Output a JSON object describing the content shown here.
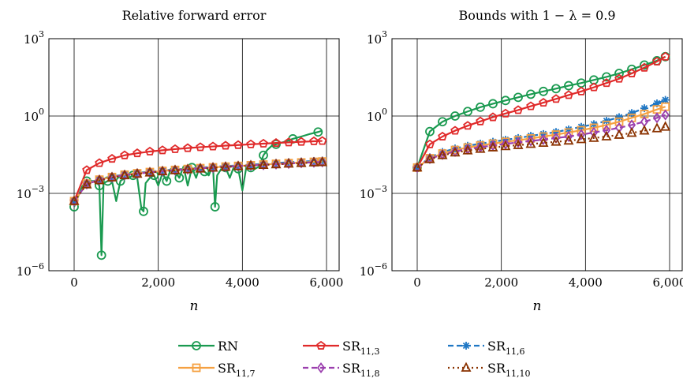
{
  "chart_data": [
    {
      "type": "line",
      "title": "Relative forward error",
      "xlabel": "n",
      "ylabel": "",
      "xlim": [
        -600,
        6300
      ],
      "ylim": [
        1e-06,
        1000
      ],
      "yscale": "log",
      "xticks": [
        0,
        2000,
        4000,
        6000
      ],
      "xtick_labels": [
        "0",
        "2,000",
        "4,000",
        "6,000"
      ],
      "yticks": [
        1e-06,
        0.001,
        1,
        1000
      ],
      "ytick_labels": [
        {
          "base": "10",
          "exp": "−6"
        },
        {
          "base": "10",
          "exp": "−3"
        },
        {
          "base": "10",
          "exp": "0"
        },
        {
          "base": "10",
          "exp": "3"
        }
      ],
      "grid": true,
      "series": [
        {
          "name": "RN",
          "x": [
            0,
            100,
            200,
            300,
            400,
            500,
            600,
            650,
            700,
            800,
            900,
            1000,
            1100,
            1200,
            1300,
            1400,
            1500,
            1600,
            1650,
            1700,
            1800,
            1900,
            2000,
            2100,
            2200,
            2300,
            2400,
            2500,
            2600,
            2700,
            2800,
            2900,
            3000,
            3100,
            3200,
            3300,
            3350,
            3400,
            3500,
            3600,
            3700,
            3800,
            3900,
            4000,
            4100,
            4200,
            4300,
            4400,
            4500,
            4600,
            4700,
            4800,
            4900,
            5000,
            5200,
            5400,
            5600,
            5800,
            5900
          ],
          "y": [
            0.0003,
            0.0008,
            0.002,
            0.003,
            0.003,
            0.003,
            0.002,
            4e-06,
            0.0025,
            0.003,
            0.003,
            0.0005,
            0.003,
            0.004,
            0.004,
            0.005,
            0.004,
            0.00025,
            0.0002,
            0.0025,
            0.004,
            0.005,
            0.002,
            0.006,
            0.003,
            0.009,
            0.007,
            0.004,
            0.011,
            0.002,
            0.01,
            0.004,
            0.013,
            0.007,
            0.005,
            0.012,
            0.0003,
            0.005,
            0.009,
            0.01,
            0.004,
            0.011,
            0.009,
            0.0013,
            0.012,
            0.01,
            0.009,
            0.011,
            0.03,
            0.05,
            0.07,
            0.08,
            0.09,
            0.1,
            0.13,
            0.16,
            0.2,
            0.24,
            0.27
          ]
        },
        {
          "name": "SR11,3",
          "x": [
            0,
            300,
            600,
            900,
            1200,
            1500,
            1800,
            2100,
            2400,
            2700,
            3000,
            3300,
            3600,
            3900,
            4200,
            4500,
            4800,
            5100,
            5400,
            5700,
            5900
          ],
          "y": [
            0.0005,
            0.008,
            0.015,
            0.022,
            0.03,
            0.036,
            0.042,
            0.047,
            0.052,
            0.057,
            0.062,
            0.066,
            0.071,
            0.075,
            0.08,
            0.085,
            0.09,
            0.095,
            0.1,
            0.105,
            0.108
          ]
        },
        {
          "name": "SR11,6",
          "x": [
            0,
            300,
            600,
            900,
            1200,
            1500,
            1800,
            2100,
            2400,
            2700,
            3000,
            3300,
            3600,
            3900,
            4200,
            4500,
            4800,
            5100,
            5400,
            5700,
            5900
          ],
          "y": [
            0.0005,
            0.0025,
            0.0035,
            0.0045,
            0.0055,
            0.0062,
            0.007,
            0.0077,
            0.0085,
            0.0092,
            0.01,
            0.0107,
            0.0115,
            0.0122,
            0.013,
            0.014,
            0.015,
            0.016,
            0.017,
            0.018,
            0.0186
          ]
        },
        {
          "name": "SR11,7",
          "x": [
            0,
            300,
            600,
            900,
            1200,
            1500,
            1800,
            2100,
            2400,
            2700,
            3000,
            3300,
            3600,
            3900,
            4200,
            4500,
            4800,
            5100,
            5400,
            5700,
            5900
          ],
          "y": [
            0.0005,
            0.0024,
            0.0034,
            0.0043,
            0.0053,
            0.006,
            0.0067,
            0.0074,
            0.0081,
            0.0088,
            0.0095,
            0.0102,
            0.0109,
            0.0116,
            0.0123,
            0.0131,
            0.014,
            0.0149,
            0.0158,
            0.0167,
            0.0172
          ]
        },
        {
          "name": "SR11,8",
          "x": [
            0,
            300,
            600,
            900,
            1200,
            1500,
            1800,
            2100,
            2400,
            2700,
            3000,
            3300,
            3600,
            3900,
            4200,
            4500,
            4800,
            5100,
            5400,
            5700,
            5900
          ],
          "y": [
            0.0005,
            0.0023,
            0.0033,
            0.0042,
            0.0051,
            0.0058,
            0.0065,
            0.0072,
            0.0079,
            0.0086,
            0.0093,
            0.01,
            0.0107,
            0.0114,
            0.0121,
            0.0128,
            0.0136,
            0.0144,
            0.0152,
            0.016,
            0.0165
          ]
        },
        {
          "name": "SR11,10",
          "x": [
            0,
            300,
            600,
            900,
            1200,
            1500,
            1800,
            2100,
            2400,
            2700,
            3000,
            3300,
            3600,
            3900,
            4200,
            4500,
            4800,
            5100,
            5400,
            5700,
            5900
          ],
          "y": [
            0.0005,
            0.0022,
            0.0032,
            0.0041,
            0.005,
            0.0057,
            0.0064,
            0.0071,
            0.0078,
            0.0085,
            0.0091,
            0.0098,
            0.0105,
            0.0112,
            0.0119,
            0.0126,
            0.0133,
            0.0141,
            0.0149,
            0.0156,
            0.0161
          ]
        }
      ]
    },
    {
      "type": "line",
      "title": "Bounds with 1 − λ = 0.9",
      "xlabel": "n",
      "ylabel": "",
      "xlim": [
        -600,
        6300
      ],
      "ylim": [
        1e-06,
        1000
      ],
      "yscale": "log",
      "xticks": [
        0,
        2000,
        4000,
        6000
      ],
      "xtick_labels": [
        "0",
        "2,000",
        "4,000",
        "6,000"
      ],
      "yticks": [
        1e-06,
        0.001,
        1,
        1000
      ],
      "ytick_labels": [
        {
          "base": "10",
          "exp": "−6"
        },
        {
          "base": "10",
          "exp": "−3"
        },
        {
          "base": "10",
          "exp": "0"
        },
        {
          "base": "10",
          "exp": "3"
        }
      ],
      "grid": true,
      "series": [
        {
          "name": "RN",
          "x": [
            0,
            300,
            600,
            900,
            1200,
            1500,
            1800,
            2100,
            2400,
            2700,
            3000,
            3300,
            3600,
            3900,
            4200,
            4500,
            4800,
            5100,
            5400,
            5700,
            5900
          ],
          "y": [
            0.01,
            0.25,
            0.6,
            1.0,
            1.5,
            2.2,
            3.0,
            4.0,
            5.3,
            7.0,
            9.0,
            11.5,
            15,
            19,
            25,
            33,
            45,
            65,
            95,
            140,
            200
          ]
        },
        {
          "name": "SR11,3",
          "x": [
            0,
            300,
            600,
            900,
            1200,
            1500,
            1800,
            2100,
            2400,
            2700,
            3000,
            3300,
            3600,
            3900,
            4200,
            4500,
            4800,
            5100,
            5400,
            5700,
            5900
          ],
          "y": [
            0.01,
            0.08,
            0.16,
            0.27,
            0.42,
            0.62,
            0.9,
            1.25,
            1.7,
            2.4,
            3.3,
            4.6,
            6.5,
            9.0,
            13,
            19,
            28,
            45,
            75,
            130,
            200
          ]
        },
        {
          "name": "SR11,6",
          "x": [
            0,
            300,
            600,
            900,
            1200,
            1500,
            1800,
            2100,
            2400,
            2700,
            3000,
            3300,
            3600,
            3900,
            4200,
            4500,
            4800,
            5100,
            5400,
            5700,
            5900
          ],
          "y": [
            0.01,
            0.025,
            0.04,
            0.055,
            0.07,
            0.085,
            0.1,
            0.12,
            0.14,
            0.17,
            0.2,
            0.24,
            0.3,
            0.38,
            0.48,
            0.65,
            0.9,
            1.3,
            2.0,
            3.1,
            4.2
          ]
        },
        {
          "name": "SR11,7",
          "x": [
            0,
            300,
            600,
            900,
            1200,
            1500,
            1800,
            2100,
            2400,
            2700,
            3000,
            3300,
            3600,
            3900,
            4200,
            4500,
            4800,
            5100,
            5400,
            5700,
            5900
          ],
          "y": [
            0.01,
            0.023,
            0.035,
            0.048,
            0.06,
            0.072,
            0.085,
            0.1,
            0.115,
            0.135,
            0.16,
            0.19,
            0.23,
            0.28,
            0.35,
            0.45,
            0.6,
            0.85,
            1.2,
            1.8,
            2.3
          ]
        },
        {
          "name": "SR11,8",
          "x": [
            0,
            300,
            600,
            900,
            1200,
            1500,
            1800,
            2100,
            2400,
            2700,
            3000,
            3300,
            3600,
            3900,
            4200,
            4500,
            4800,
            5100,
            5400,
            5700,
            5900
          ],
          "y": [
            0.01,
            0.022,
            0.032,
            0.042,
            0.052,
            0.062,
            0.072,
            0.083,
            0.095,
            0.108,
            0.122,
            0.14,
            0.16,
            0.19,
            0.23,
            0.28,
            0.35,
            0.45,
            0.6,
            0.85,
            1.1
          ]
        },
        {
          "name": "SR11,10",
          "x": [
            0,
            300,
            600,
            900,
            1200,
            1500,
            1800,
            2100,
            2400,
            2700,
            3000,
            3300,
            3600,
            3900,
            4200,
            4500,
            4800,
            5100,
            5400,
            5700,
            5900
          ],
          "y": [
            0.01,
            0.021,
            0.03,
            0.038,
            0.046,
            0.053,
            0.06,
            0.067,
            0.074,
            0.082,
            0.09,
            0.1,
            0.11,
            0.125,
            0.14,
            0.16,
            0.185,
            0.22,
            0.27,
            0.33,
            0.38
          ]
        }
      ]
    }
  ],
  "legend": {
    "placement": "bottom",
    "items": [
      {
        "key": "RN",
        "base": "RN",
        "sub": "",
        "color": "#1a9a50",
        "marker": "circle",
        "dash": "solid"
      },
      {
        "key": "SR11,3",
        "base": "SR",
        "sub": "11,3",
        "color": "#e02a2a",
        "marker": "pentagon",
        "dash": "solid"
      },
      {
        "key": "SR11,6",
        "base": "SR",
        "sub": "11,6",
        "color": "#1f77c4",
        "marker": "star",
        "dash": "dashed"
      },
      {
        "key": "SR11,7",
        "base": "SR",
        "sub": "11,7",
        "color": "#f5a142",
        "marker": "square",
        "dash": "solid"
      },
      {
        "key": "SR11,8",
        "base": "SR",
        "sub": "11,8",
        "color": "#9b3fae",
        "marker": "diamond",
        "dash": "dashed"
      },
      {
        "key": "SR11,10",
        "base": "SR",
        "sub": "11,10",
        "color": "#8a3200",
        "marker": "triangle",
        "dash": "dotted"
      }
    ]
  }
}
